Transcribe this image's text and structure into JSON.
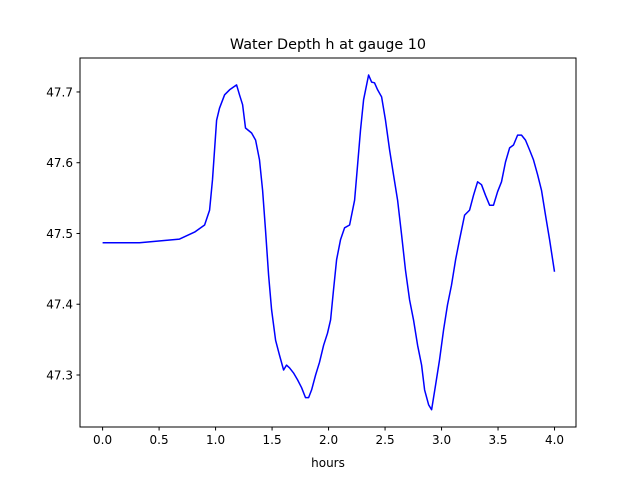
{
  "chart_data": {
    "type": "line",
    "title": "Water Depth h at gauge 10",
    "xlabel": "hours",
    "ylabel": "",
    "xlim": [
      -0.2,
      4.19
    ],
    "ylim": [
      47.2265,
      47.748
    ],
    "xticks": [
      0.0,
      0.5,
      1.0,
      1.5,
      2.0,
      2.5,
      3.0,
      3.5,
      4.0
    ],
    "xtick_labels": [
      "0.0",
      "0.5",
      "1.0",
      "1.5",
      "2.0",
      "2.5",
      "3.0",
      "3.5",
      "4.0"
    ],
    "yticks": [
      47.3,
      47.4,
      47.5,
      47.6,
      47.7
    ],
    "ytick_labels": [
      "47.3",
      "47.4",
      "47.5",
      "47.6",
      "47.7"
    ],
    "grid": false,
    "series": [
      {
        "name": "h",
        "color": "#0000ff",
        "x": [
          0,
          0.327,
          0.681,
          0.814,
          0.903,
          0.947,
          0.973,
          1.009,
          1.035,
          1.08,
          1.124,
          1.186,
          1.212,
          1.239,
          1.265,
          1.319,
          1.354,
          1.389,
          1.416,
          1.442,
          1.469,
          1.496,
          1.531,
          1.566,
          1.602,
          1.628,
          1.655,
          1.69,
          1.726,
          1.761,
          1.796,
          1.823,
          1.85,
          1.885,
          1.92,
          1.956,
          1.991,
          2.018,
          2.044,
          2.071,
          2.106,
          2.142,
          2.186,
          2.23,
          2.257,
          2.283,
          2.31,
          2.354,
          2.381,
          2.407,
          2.434,
          2.469,
          2.504,
          2.54,
          2.575,
          2.611,
          2.646,
          2.681,
          2.717,
          2.752,
          2.788,
          2.823,
          2.85,
          2.885,
          2.912,
          2.947,
          2.982,
          3.018,
          3.053,
          3.088,
          3.124,
          3.159,
          3.204,
          3.248,
          3.283,
          3.319,
          3.354,
          3.389,
          3.425,
          3.46,
          3.496,
          3.531,
          3.566,
          3.602,
          3.637,
          3.673,
          3.708,
          3.743,
          3.779,
          3.814,
          3.85,
          3.885,
          3.92,
          3.956,
          4.0
        ],
        "y": [
          47.487,
          47.487,
          47.492,
          47.502,
          47.512,
          47.533,
          47.576,
          47.66,
          47.677,
          47.696,
          47.703,
          47.71,
          47.696,
          47.682,
          47.649,
          47.642,
          47.632,
          47.604,
          47.561,
          47.505,
          47.441,
          47.392,
          47.349,
          47.328,
          47.307,
          47.314,
          47.31,
          47.303,
          47.293,
          47.282,
          47.268,
          47.268,
          47.279,
          47.3,
          47.318,
          47.342,
          47.359,
          47.378,
          47.42,
          47.463,
          47.491,
          47.508,
          47.512,
          47.547,
          47.597,
          47.646,
          47.689,
          47.724,
          47.714,
          47.713,
          47.703,
          47.693,
          47.66,
          47.618,
          47.583,
          47.547,
          47.498,
          47.448,
          47.406,
          47.378,
          47.342,
          47.314,
          47.279,
          47.258,
          47.251,
          47.286,
          47.321,
          47.364,
          47.399,
          47.427,
          47.463,
          47.491,
          47.526,
          47.533,
          47.554,
          47.573,
          47.569,
          47.554,
          47.54,
          47.54,
          47.559,
          47.573,
          47.601,
          47.621,
          47.625,
          47.639,
          47.639,
          47.632,
          47.618,
          47.604,
          47.583,
          47.561,
          47.526,
          47.491,
          47.446
        ]
      }
    ]
  }
}
